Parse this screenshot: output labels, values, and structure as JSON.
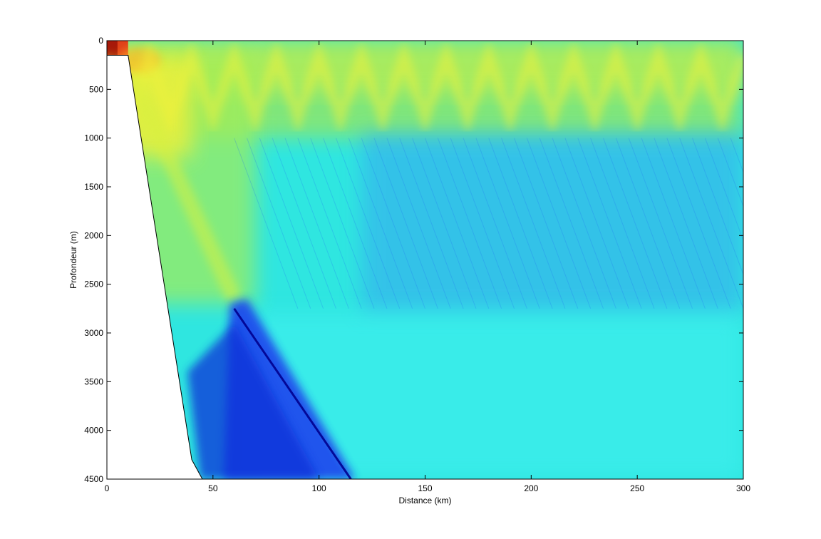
{
  "chart_data": {
    "type": "heatmap",
    "title": "",
    "xlabel": "Distance (km)",
    "ylabel": "Profondeur (m)",
    "xlim": [
      0,
      300
    ],
    "ylim": [
      0,
      4500
    ],
    "y_reversed": true,
    "x_ticks": [
      0,
      50,
      100,
      150,
      200,
      250,
      300
    ],
    "y_ticks": [
      0,
      500,
      1000,
      1500,
      2000,
      2500,
      3000,
      3500,
      4000,
      4500
    ],
    "x_tick_labels": [
      "0",
      "50",
      "100",
      "150",
      "200",
      "250",
      "300"
    ],
    "y_tick_labels": [
      "0",
      "500",
      "1000",
      "1500",
      "2000",
      "2500",
      "3000",
      "3500",
      "4000",
      "4500"
    ],
    "colormap": "jet",
    "grid": false,
    "legend": "none",
    "topography": [
      {
        "x": 0,
        "y": 150
      },
      {
        "x": 10,
        "y": 150
      },
      {
        "x": 40,
        "y": 4300
      },
      {
        "x": 45,
        "y": 4500
      },
      {
        "x": 0,
        "y": 4500
      }
    ],
    "regions": {
      "surface_maximum": {
        "x": [
          0,
          10
        ],
        "y": [
          0,
          150
        ],
        "level": "high"
      },
      "upper_layer": {
        "y": [
          0,
          900
        ],
        "level": "medium-high"
      },
      "mid_layer": {
        "y": [
          900,
          2800
        ],
        "level": "medium"
      },
      "deep_ray_beam": {
        "from": [
          60,
          2700
        ],
        "to": [
          115,
          4500
        ],
        "level": "low"
      }
    }
  },
  "colors": {
    "background": "#ffffff",
    "axes": "#000000",
    "topography_fill": "#ffffff",
    "jet_low": "#00008f",
    "jet_mid": "#00ffff",
    "jet_high": "#ffff00",
    "jet_max": "#800000"
  }
}
